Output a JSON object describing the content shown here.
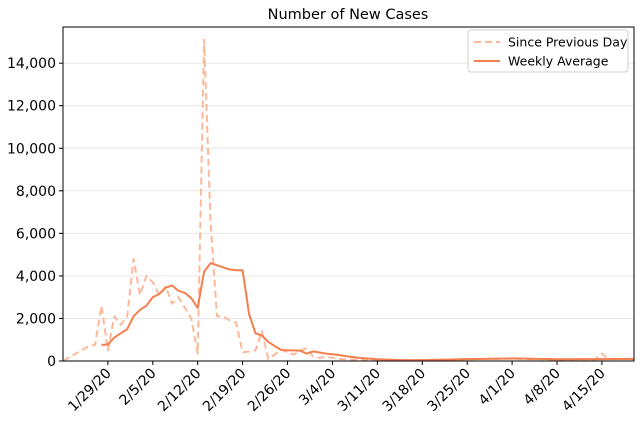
{
  "chart_data": {
    "type": "line",
    "title": "Number of New Cases",
    "xlabel": "",
    "ylabel": "",
    "grid": {
      "y": true,
      "x": false
    },
    "legend_position": "top-right",
    "x_type": "date",
    "xlim": [
      "2020-01-22",
      "2020-04-20"
    ],
    "ylim": [
      0,
      15700
    ],
    "x_tick_labels": [
      "1/29/20",
      "2/5/20",
      "2/12/20",
      "2/19/20",
      "2/26/20",
      "3/4/20",
      "3/11/20",
      "3/18/20",
      "3/25/20",
      "4/1/20",
      "4/8/20",
      "4/15/20"
    ],
    "x_tick_dates": [
      "2020-01-29",
      "2020-02-05",
      "2020-02-12",
      "2020-02-19",
      "2020-02-26",
      "2020-03-04",
      "2020-03-11",
      "2020-03-18",
      "2020-03-25",
      "2020-04-01",
      "2020-04-08",
      "2020-04-15"
    ],
    "y_ticks": [
      0,
      2000,
      4000,
      6000,
      8000,
      10000,
      12000,
      14000
    ],
    "y_tick_labels": [
      "0",
      "2,000",
      "4,000",
      "6,000",
      "8,000",
      "10,000",
      "12,000",
      "14,000"
    ],
    "series": [
      {
        "name": "Since Previous Day",
        "style": "dashed",
        "color": "#fcb99a",
        "x": [
          "2020-01-22",
          "2020-01-26",
          "2020-01-27",
          "2020-01-28",
          "2020-01-29",
          "2020-01-30",
          "2020-01-31",
          "2020-02-01",
          "2020-02-02",
          "2020-02-03",
          "2020-02-04",
          "2020-02-05",
          "2020-02-06",
          "2020-02-07",
          "2020-02-08",
          "2020-02-09",
          "2020-02-10",
          "2020-02-11",
          "2020-02-12",
          "2020-02-13",
          "2020-02-14",
          "2020-02-15",
          "2020-02-16",
          "2020-02-17",
          "2020-02-18",
          "2020-02-19",
          "2020-02-20",
          "2020-02-21",
          "2020-02-22",
          "2020-02-23",
          "2020-02-24",
          "2020-02-25",
          "2020-02-26",
          "2020-02-27",
          "2020-02-28",
          "2020-02-29",
          "2020-03-01",
          "2020-03-02",
          "2020-03-03",
          "2020-03-04",
          "2020-03-05",
          "2020-03-06",
          "2020-03-08",
          "2020-03-11",
          "2020-03-15",
          "2020-03-18",
          "2020-03-25",
          "2020-04-01",
          "2020-04-08",
          "2020-04-13",
          "2020-04-14",
          "2020-04-15",
          "2020-04-16",
          "2020-04-18",
          "2020-04-20"
        ],
        "values": [
          0,
          700,
          750,
          2600,
          500,
          2100,
          1700,
          2100,
          4800,
          3100,
          4000,
          3700,
          3100,
          3500,
          2700,
          3000,
          2500,
          2000,
          350,
          15100,
          6500,
          2100,
          2100,
          1900,
          1800,
          400,
          450,
          500,
          1400,
          100,
          300,
          550,
          400,
          300,
          500,
          600,
          200,
          150,
          200,
          150,
          100,
          80,
          50,
          30,
          20,
          40,
          90,
          110,
          70,
          90,
          80,
          350,
          100,
          100,
          90
        ]
      },
      {
        "name": "Weekly Average",
        "style": "solid",
        "color": "#f47f4f",
        "x": [
          "2020-01-28",
          "2020-01-29",
          "2020-01-30",
          "2020-01-31",
          "2020-02-01",
          "2020-02-02",
          "2020-02-03",
          "2020-02-04",
          "2020-02-05",
          "2020-02-06",
          "2020-02-07",
          "2020-02-08",
          "2020-02-09",
          "2020-02-10",
          "2020-02-11",
          "2020-02-12",
          "2020-02-13",
          "2020-02-14",
          "2020-02-15",
          "2020-02-16",
          "2020-02-17",
          "2020-02-18",
          "2020-02-19",
          "2020-02-20",
          "2020-02-21",
          "2020-02-22",
          "2020-02-23",
          "2020-02-24",
          "2020-02-25",
          "2020-02-26",
          "2020-02-27",
          "2020-02-28",
          "2020-02-29",
          "2020-03-01",
          "2020-03-02",
          "2020-03-03",
          "2020-03-04",
          "2020-03-05",
          "2020-03-06",
          "2020-03-08",
          "2020-03-11",
          "2020-03-15",
          "2020-03-18",
          "2020-03-25",
          "2020-04-01",
          "2020-04-08",
          "2020-04-15",
          "2020-04-20"
        ],
        "values": [
          750,
          780,
          1100,
          1300,
          1500,
          2100,
          2400,
          2600,
          3000,
          3150,
          3450,
          3550,
          3300,
          3200,
          2950,
          2500,
          4200,
          4600,
          4500,
          4400,
          4300,
          4270,
          4270,
          2200,
          1300,
          1200,
          900,
          700,
          520,
          500,
          500,
          480,
          350,
          450,
          400,
          350,
          320,
          280,
          230,
          150,
          80,
          40,
          40,
          90,
          120,
          80,
          90,
          100
        ]
      }
    ]
  }
}
